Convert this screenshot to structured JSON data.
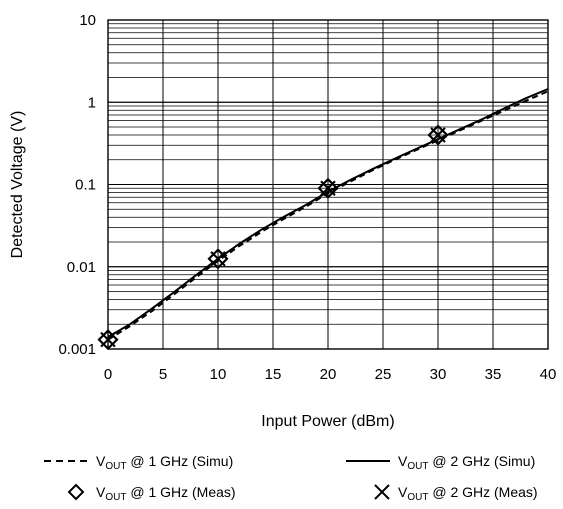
{
  "chart_data": {
    "type": "line",
    "yscale": "log",
    "xlabel": "Input Power (dBm)",
    "ylabel": "Detected Voltage (V)",
    "xlim": [
      0,
      40
    ],
    "ylim": [
      0.001,
      10
    ],
    "xticks": [
      "0",
      "5",
      "10",
      "15",
      "20",
      "25",
      "30",
      "35",
      "40"
    ],
    "yticks": [
      "0.001",
      "0.01",
      "0.1",
      "1",
      "10"
    ],
    "grid": true,
    "legend_position": "bottom",
    "series": [
      {
        "name": "VOUT @ 1 GHz (Simu)",
        "label_main": "V",
        "label_sub": "OUT",
        "label_rest": " @ 1 GHz (Simu)",
        "style": "dashed",
        "x": [
          0,
          2,
          4,
          6,
          8,
          10,
          12,
          14,
          16,
          18,
          20,
          22,
          24,
          26,
          28,
          30,
          32,
          34,
          36,
          38,
          40
        ],
        "y": [
          0.0013,
          0.0019,
          0.0029,
          0.0046,
          0.0074,
          0.0118,
          0.0181,
          0.0268,
          0.0384,
          0.0537,
          0.0784,
          0.108,
          0.148,
          0.198,
          0.262,
          0.345,
          0.455,
          0.6,
          0.79,
          1.04,
          1.36
        ]
      },
      {
        "name": "VOUT @ 2 GHz (Simu)",
        "label_main": "V",
        "label_sub": "OUT",
        "label_rest": " @ 2 GHz (Simu)",
        "style": "solid",
        "x": [
          0,
          2,
          4,
          6,
          8,
          10,
          12,
          14,
          16,
          18,
          20,
          22,
          24,
          26,
          28,
          30,
          32,
          34,
          36,
          38,
          40
        ],
        "y": [
          0.0014,
          0.002,
          0.0031,
          0.0049,
          0.0079,
          0.0125,
          0.0193,
          0.0285,
          0.0405,
          0.0565,
          0.082,
          0.113,
          0.153,
          0.204,
          0.27,
          0.355,
          0.47,
          0.62,
          0.84,
          1.12,
          1.45
        ]
      },
      {
        "name": "VOUT @ 1 GHz (Meas)",
        "label_main": "V",
        "label_sub": "OUT",
        "label_rest": " @ 1 GHz (Meas)",
        "style": "diamond-markers",
        "x": [
          0,
          10,
          20,
          30
        ],
        "y": [
          0.0013,
          0.0125,
          0.09,
          0.4
        ]
      },
      {
        "name": "VOUT @ 2 GHz (Meas)",
        "label_main": "V",
        "label_sub": "OUT",
        "label_rest": " @ 2 GHz (Meas)",
        "style": "x-markers",
        "x": [
          0,
          10,
          20,
          30
        ],
        "y": [
          0.0013,
          0.0125,
          0.09,
          0.4
        ]
      }
    ]
  }
}
